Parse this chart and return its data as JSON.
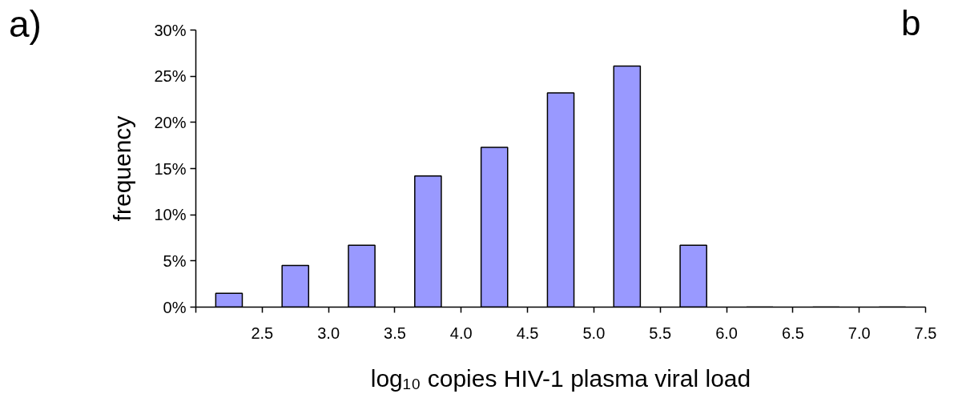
{
  "chart_data": {
    "type": "histogram",
    "xlabel": "log₁₀ copies HIV-1 plasma viral load",
    "ylabel": "frequency",
    "bins": [
      2.0,
      2.5,
      3.0,
      3.5,
      4.0,
      4.5,
      5.0,
      5.5,
      6.0,
      6.5,
      7.0,
      7.5
    ],
    "values": [
      1.5,
      4.5,
      6.7,
      14.2,
      17.3,
      23.2,
      26.1,
      6.7,
      0,
      0,
      0
    ],
    "color": "#9999ff",
    "xlim": [
      2.0,
      7.5
    ],
    "xticks": [
      {
        "value": 2.0,
        "label": null
      },
      {
        "value": 2.5,
        "label": "2.5"
      },
      {
        "value": 3.0,
        "label": "3.0"
      },
      {
        "value": 3.5,
        "label": "3.5"
      },
      {
        "value": 4.0,
        "label": "4.0"
      },
      {
        "value": 4.5,
        "label": "4.5"
      },
      {
        "value": 5.0,
        "label": "5.0"
      },
      {
        "value": 5.5,
        "label": "5.5"
      },
      {
        "value": 6.0,
        "label": "6.0"
      },
      {
        "value": 6.5,
        "label": "6.5"
      },
      {
        "value": 7.0,
        "label": "7.0"
      },
      {
        "value": 7.5,
        "label": "7.5"
      }
    ],
    "ylim": [
      0,
      30
    ],
    "yticks": [
      {
        "value": 0,
        "label": "0%"
      },
      {
        "value": 5,
        "label": "5%"
      },
      {
        "value": 10,
        "label": "10%"
      },
      {
        "value": 15,
        "label": "15%"
      },
      {
        "value": 20,
        "label": "20%"
      },
      {
        "value": 25,
        "label": "25%"
      },
      {
        "value": 30,
        "label": "30%"
      }
    ],
    "grid": false,
    "annotations": [
      "a)",
      "b"
    ]
  }
}
